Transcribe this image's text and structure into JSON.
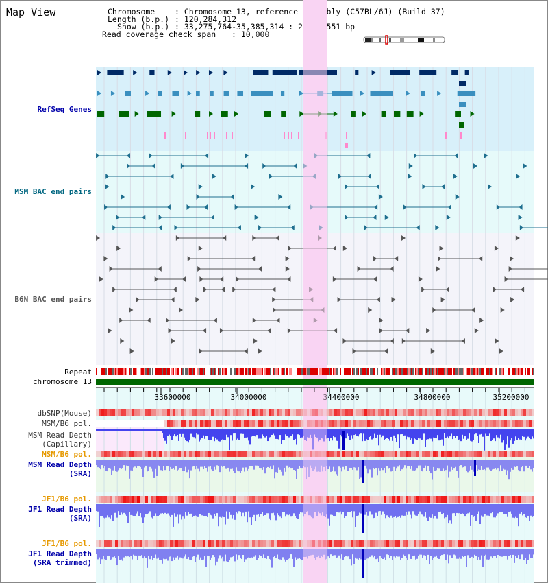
{
  "title": "Map View",
  "info": {
    "chromosome_key": "Chromosome",
    "chromosome_value": ": Chromosome 13, reference assembly (C57BL/6J) (Build 37)",
    "length_key": "Length (b.p.)",
    "length_value": ": 120,284,312",
    "show_key": "Show (b.p.)",
    "show_value": ": 33,275,764-35,385,314 : 2,109,551 bp",
    "coverage_key": "Read coverage check span",
    "coverage_value": ": 10,000"
  },
  "tracks": {
    "refseq": "RefSeq Genes",
    "msm_bac": "MSM BAC end pairs",
    "b6n_bac": "B6N BAC end pairs",
    "repeat": "Repeat",
    "chromosome": "chromosome 13",
    "dbsnp": "dbSNP(Mouse)",
    "msm_b6_pol_1": "MSM/B6 pol.",
    "msm_depth_cap_1": "MSM Read Depth",
    "msm_depth_cap_2": "(Capillary)",
    "msm_b6_pol_2": "MSM/B6 pol.",
    "msm_depth_sra_1": "MSM Read Depth",
    "msm_depth_sra_2": "(SRA)",
    "jf1_b6_pol_1": "JF1/B6 pol.",
    "jf1_depth_sra_1": "JF1 Read Depth",
    "jf1_depth_sra_2": "(SRA)",
    "jf1_b6_pol_2": "JF1/B6 pol.",
    "jf1_depth_trim_1": "JF1 Read Depth",
    "jf1_depth_trim_2": "(SRA trimmed)"
  },
  "axis": {
    "ticks": [
      "33600000",
      "34000000",
      "34400000",
      "34800000",
      "35200000"
    ]
  },
  "colors": {
    "refseq_bg": "#d8f0fa",
    "msm_bac_bg": "#e6fafa",
    "b6n_bac_bg": "#f4f4fa",
    "highlight": "#f9d4f3",
    "gene_navy": "#002a66",
    "gene_blue": "#3a8fbf",
    "gene_green": "#006600",
    "msm_bac": "#1f6f8f",
    "b6n_bac": "#555555",
    "pol_orange": "#e69900",
    "depth_blue": "#0000bb"
  }
}
